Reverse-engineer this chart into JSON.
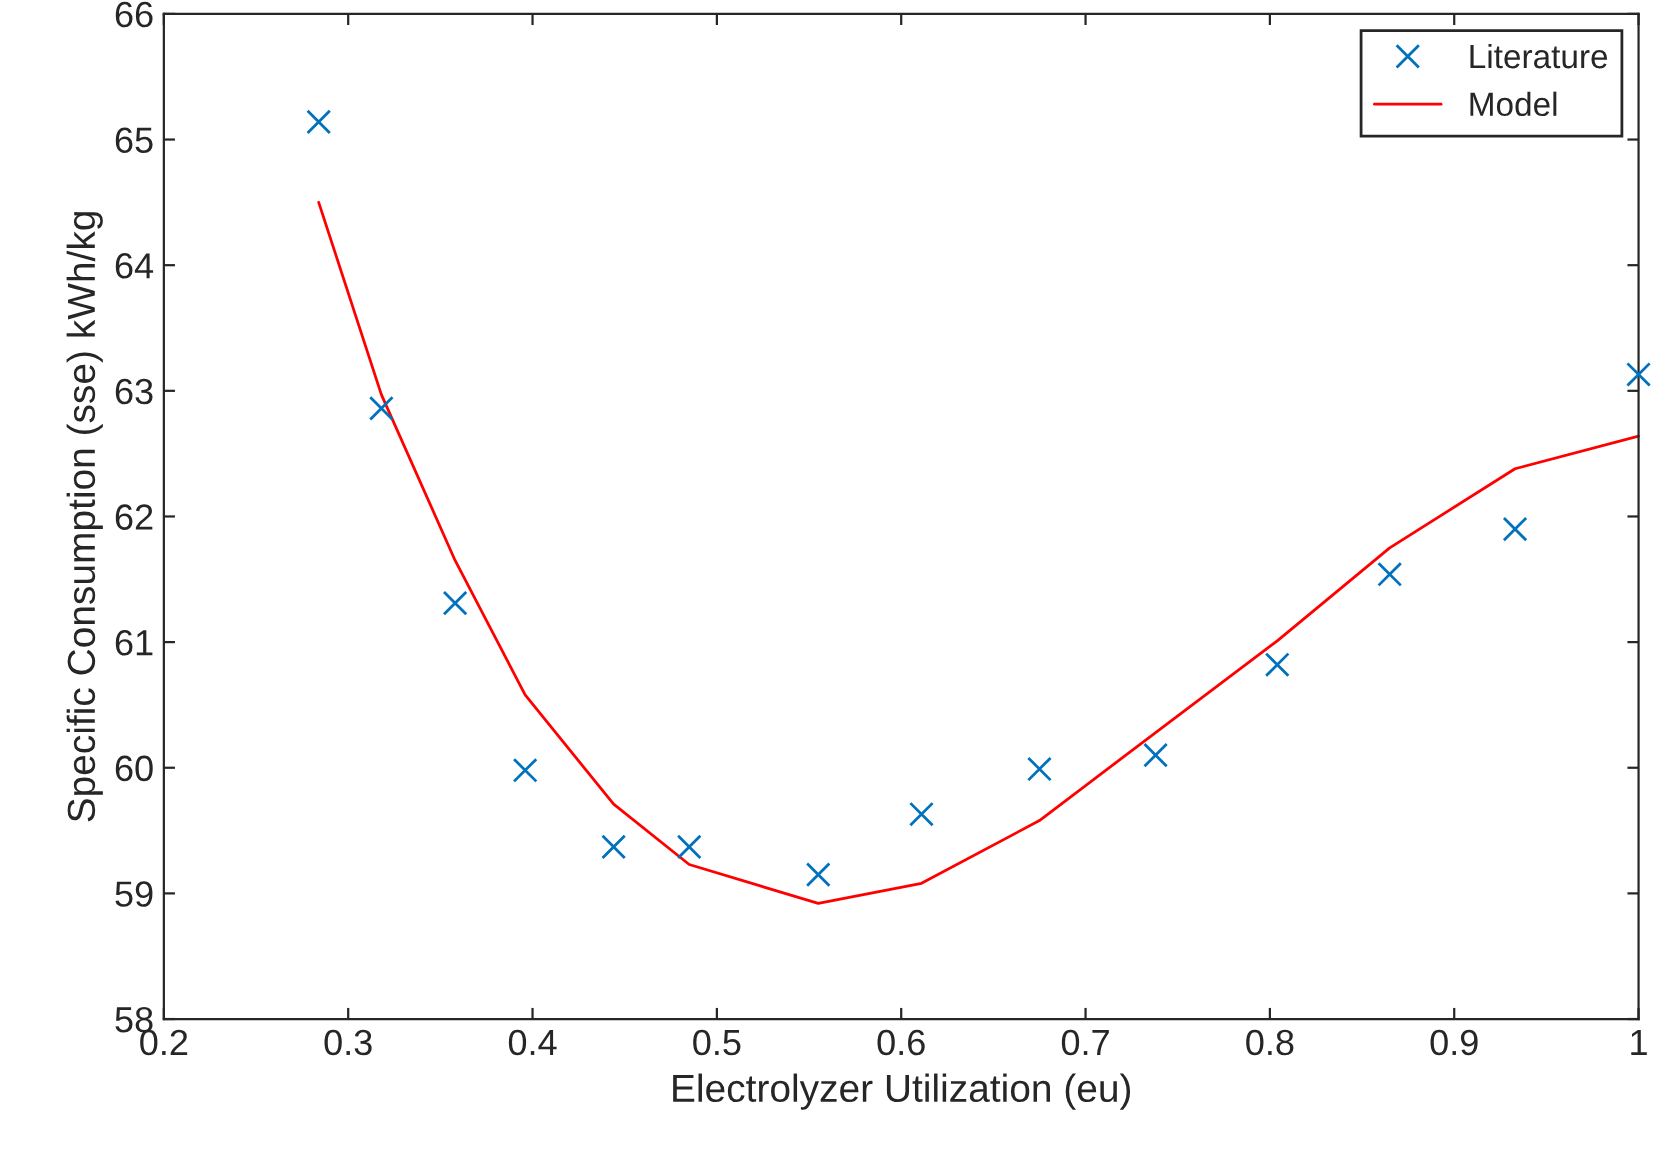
{
  "chart_data": {
    "type": "line",
    "xlabel": "Electrolyzer Utilization (eu)",
    "ylabel": "Specific Consumption (sse) kWh/kg",
    "xlim": [
      0.2,
      1.0
    ],
    "xticks": [
      0.2,
      0.3,
      0.4,
      0.5,
      0.6,
      0.7,
      0.8,
      0.9,
      {
        "value": 1.0,
        "label": "1"
      }
    ],
    "ylim": [
      58,
      66
    ],
    "yticks": [
      58,
      59,
      60,
      61,
      62,
      63,
      64,
      65,
      66
    ],
    "grid": false,
    "legend": "top right",
    "series": [
      {
        "name": "Literature",
        "type": "scatter",
        "marker": "cross",
        "color": "#0072bd",
        "x": [
          0.284,
          0.318,
          0.358,
          0.396,
          0.444,
          0.485,
          0.555,
          0.611,
          0.675,
          0.738,
          0.804,
          0.865,
          0.933,
          1.0
        ],
        "values": [
          65.14,
          62.86,
          61.31,
          59.98,
          59.37,
          59.37,
          59.15,
          59.63,
          59.99,
          60.1,
          60.82,
          61.54,
          61.9,
          63.13
        ]
      },
      {
        "name": "Model",
        "line_style": "solid",
        "color": "#ff0000",
        "x": [
          0.284,
          0.318,
          0.358,
          0.396,
          0.444,
          0.485,
          0.555,
          0.611,
          0.675,
          0.738,
          0.804,
          0.865,
          0.933,
          1.0
        ],
        "values": [
          64.5,
          62.97,
          61.65,
          60.58,
          59.71,
          59.23,
          58.92,
          59.08,
          59.58,
          60.28,
          61.01,
          61.75,
          62.38,
          62.64
        ]
      }
    ]
  }
}
